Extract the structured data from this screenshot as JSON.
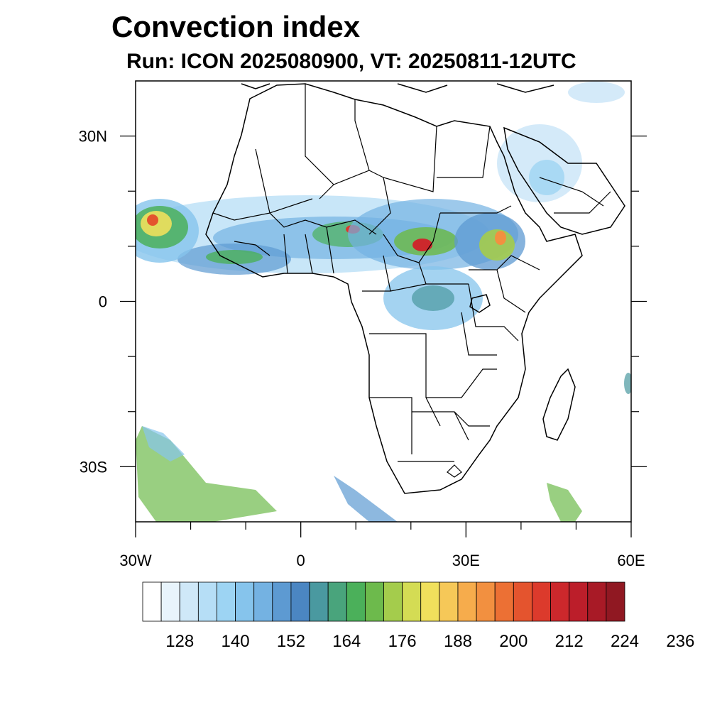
{
  "title": "Convection index",
  "subtitle": "Run: ICON 2025080900,  VT: 20250811-12UTC",
  "map": {
    "lon_range": [
      -30,
      60
    ],
    "lat_range": [
      -40,
      40
    ],
    "x_ticks": [
      {
        "value": -30,
        "label": "30W"
      },
      {
        "value": 0,
        "label": "0"
      },
      {
        "value": 30,
        "label": "30E"
      },
      {
        "value": 60,
        "label": "60E"
      }
    ],
    "y_ticks": [
      {
        "value": 30,
        "label": "30N"
      },
      {
        "value": 0,
        "label": "0"
      },
      {
        "value": -30,
        "label": "30S"
      }
    ],
    "minor_x_ticks": [
      -20,
      -10,
      10,
      20,
      40,
      50
    ],
    "minor_y_ticks": [
      20,
      10,
      -10,
      -20
    ]
  },
  "colorbar": {
    "colors": [
      "#ffffff",
      "#e8f4fc",
      "#cfe8f8",
      "#b6def6",
      "#9dd4f3",
      "#86c4ec",
      "#74b2e2",
      "#5d9ad2",
      "#4b86c2",
      "#4a99a0",
      "#49a47c",
      "#4bb05a",
      "#6dba4c",
      "#a4cc4c",
      "#d4dc54",
      "#f0e05c",
      "#f6c858",
      "#f6ac4c",
      "#f29040",
      "#ec7034",
      "#e4542e",
      "#dc3a2c",
      "#cc282c",
      "#bc1e2a",
      "#a81a26",
      "#901822"
    ],
    "labels": [
      "128",
      "140",
      "152",
      "164",
      "176",
      "188",
      "200",
      "212",
      "224",
      "236"
    ]
  }
}
